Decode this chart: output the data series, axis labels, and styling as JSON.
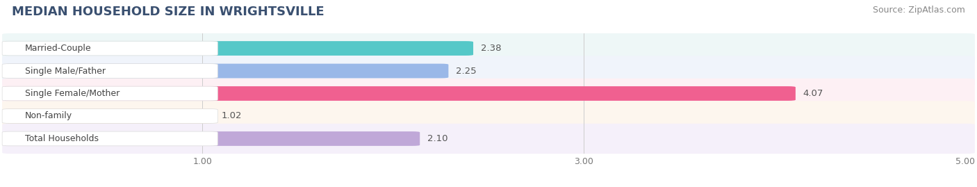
{
  "title": "MEDIAN HOUSEHOLD SIZE IN WRIGHTSVILLE",
  "source": "Source: ZipAtlas.com",
  "categories": [
    "Married-Couple",
    "Single Male/Father",
    "Single Female/Mother",
    "Non-family",
    "Total Households"
  ],
  "values": [
    2.38,
    2.25,
    4.07,
    1.02,
    2.1
  ],
  "bar_colors": [
    "#55c8c8",
    "#9ab8e8",
    "#f06090",
    "#f5c896",
    "#c0a8d8"
  ],
  "xlim": [
    0,
    5.0
  ],
  "xstart": 1.0,
  "xticks": [
    1.0,
    3.0,
    5.0
  ],
  "title_fontsize": 13,
  "source_fontsize": 9,
  "label_fontsize": 9,
  "value_fontsize": 9.5,
  "bar_height": 0.62,
  "row_colors": [
    "#eef7f7",
    "#f0f4fb",
    "#fdf0f4",
    "#fdf6ee",
    "#f5f0fa"
  ],
  "background_color": "#ffffff",
  "title_color": "#3a5070",
  "source_color": "#888888",
  "label_color": "#444444",
  "value_color": "#555555",
  "grid_color": "#cccccc"
}
